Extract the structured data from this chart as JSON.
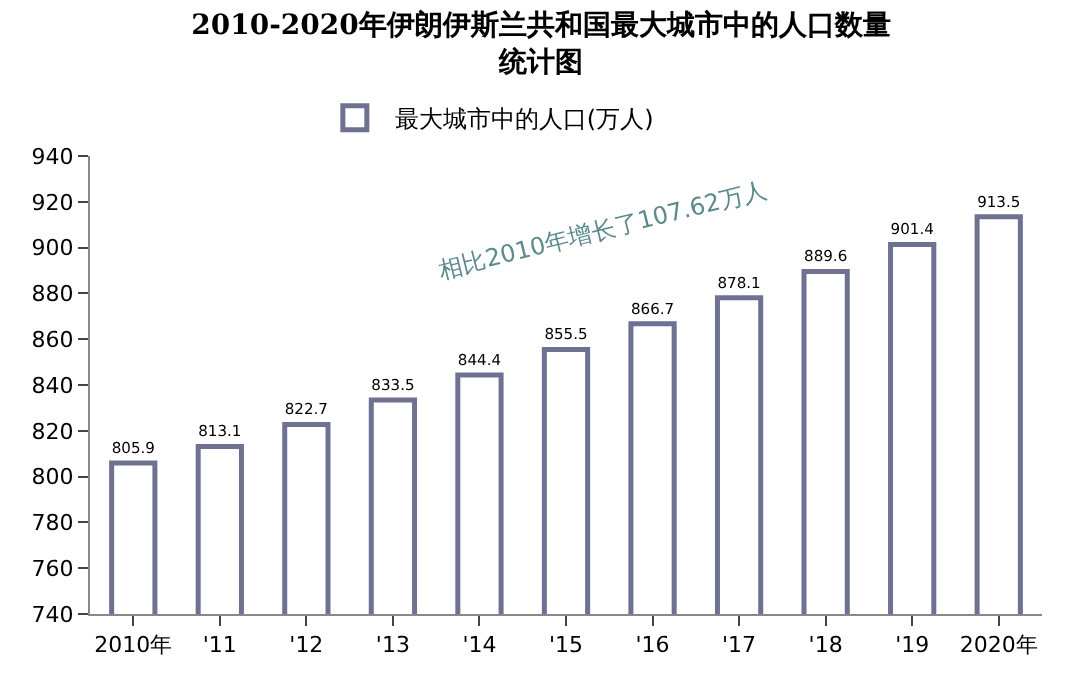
{
  "chart_data": {
    "type": "bar",
    "title": "2010-2020年伊朗伊斯兰共和国最大城市中的人口数量统计图",
    "categories": [
      "2010年",
      "'11",
      "'12",
      "'13",
      "'14",
      "'15",
      "'16",
      "'17",
      "'18",
      "'19",
      "2020年"
    ],
    "series": [
      {
        "name": "最大城市中的人口(万人)",
        "color": "#6e7191",
        "values": [
          805.9,
          813.1,
          822.7,
          833.5,
          844.4,
          855.5,
          866.7,
          878.1,
          889.6,
          901.4,
          913.5
        ]
      }
    ],
    "data_labels": true,
    "ylim": [
      740,
      940
    ],
    "yticks": [
      740,
      760,
      780,
      800,
      820,
      840,
      860,
      880,
      900,
      920,
      940
    ],
    "grid": false,
    "legend": "top",
    "annotations": [
      "相比2010年增长了107.62万人"
    ]
  }
}
